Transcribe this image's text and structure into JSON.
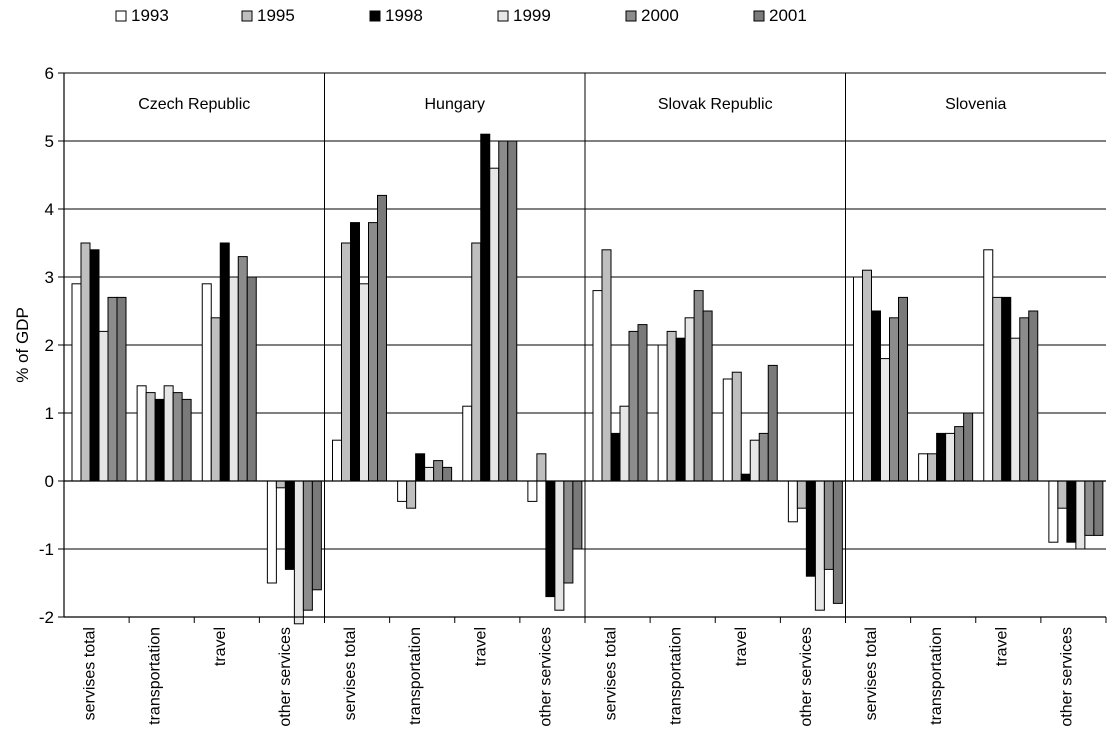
{
  "chart_data": {
    "type": "bar",
    "ylabel": "% of GDP",
    "ylim": [
      -2,
      6
    ],
    "yticks": [
      -2,
      -1,
      0,
      1,
      2,
      3,
      4,
      5,
      6
    ],
    "grid": true,
    "legend_position": "top",
    "panels": [
      "Czech Republic",
      "Hungary",
      "Slovak Republic",
      "Slovenia"
    ],
    "categories": [
      "servises total",
      "transportation",
      "travel",
      "other services"
    ],
    "series": [
      {
        "name": "1993",
        "color": "#ffffff",
        "values": [
          [
            2.9,
            1.4,
            2.9,
            -1.5
          ],
          [
            0.6,
            -0.3,
            1.1,
            -0.3
          ],
          [
            2.8,
            2.0,
            1.5,
            -0.6
          ],
          [
            3.0,
            0.4,
            3.4,
            -0.9
          ]
        ]
      },
      {
        "name": "1995",
        "color": "#bfbfbf",
        "values": [
          [
            3.5,
            1.3,
            2.4,
            -0.1
          ],
          [
            3.5,
            -0.4,
            3.5,
            0.4
          ],
          [
            3.4,
            2.2,
            1.6,
            -0.4
          ],
          [
            3.1,
            0.4,
            2.7,
            -0.4
          ]
        ]
      },
      {
        "name": "1998",
        "color": "#000000",
        "values": [
          [
            3.4,
            1.2,
            3.5,
            -1.3
          ],
          [
            3.8,
            0.4,
            5.1,
            -1.7
          ],
          [
            0.7,
            2.1,
            0.1,
            -1.4
          ],
          [
            2.5,
            0.7,
            2.7,
            -0.9
          ]
        ]
      },
      {
        "name": "1999",
        "color": "#e6e6e6",
        "values": [
          [
            2.2,
            1.4,
            3.0,
            -2.1
          ],
          [
            2.9,
            0.2,
            4.6,
            -1.9
          ],
          [
            1.1,
            2.4,
            0.6,
            -1.9
          ],
          [
            1.8,
            0.7,
            2.1,
            -1.0
          ]
        ]
      },
      {
        "name": "2000",
        "color": "#8c8c8c",
        "values": [
          [
            2.7,
            1.3,
            3.3,
            -1.9
          ],
          [
            3.8,
            0.3,
            5.0,
            -1.5
          ],
          [
            2.2,
            2.8,
            0.7,
            -1.3
          ],
          [
            2.4,
            0.8,
            2.4,
            -0.8
          ]
        ]
      },
      {
        "name": "2001",
        "color": "#7a7a7a",
        "values": [
          [
            2.7,
            1.2,
            3.0,
            -1.6
          ],
          [
            4.2,
            0.2,
            5.0,
            -1.0
          ],
          [
            2.3,
            2.5,
            1.7,
            -1.8
          ],
          [
            2.7,
            1.0,
            2.5,
            -0.8
          ]
        ]
      }
    ]
  }
}
